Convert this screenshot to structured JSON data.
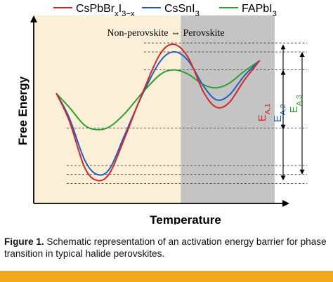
{
  "chart_data": {
    "type": "line",
    "xlabel": "Temperature",
    "ylabel": "Free Energy",
    "grid": false,
    "legend_position": "top",
    "legend": [
      {
        "name_parts": [
          {
            "t": "CsPbBr"
          },
          {
            "t": "x",
            "sub": true
          },
          {
            "t": "I"
          },
          {
            "t": "3−x",
            "sub": true
          }
        ],
        "color": "#d62728"
      },
      {
        "name_parts": [
          {
            "t": "CsSnI"
          },
          {
            "t": "3",
            "sub": true
          }
        ],
        "color": "#1f5fbf"
      },
      {
        "name_parts": [
          {
            "t": "FAPbI"
          },
          {
            "t": "3",
            "sub": true
          }
        ],
        "color": "#2ca02c"
      }
    ],
    "regions": [
      {
        "id": "non-perovskite",
        "x0": 0.0,
        "x1": 0.58,
        "color": "#fbefd7"
      },
      {
        "id": "perovskite",
        "x0": 0.58,
        "x1": 0.95,
        "color": "#c5c4c4"
      }
    ],
    "region_label": {
      "left": "Non-perovskite",
      "arrow": "⇔",
      "right": "Perovskite"
    },
    "xlim": [
      0,
      1
    ],
    "ylim": [
      0,
      1
    ],
    "series": [
      {
        "color": "#d62728",
        "points": [
          [
            0.09,
            0.64
          ],
          [
            0.14,
            0.46
          ],
          [
            0.2,
            0.15
          ],
          [
            0.25,
            0.06
          ],
          [
            0.3,
            0.11
          ],
          [
            0.36,
            0.35
          ],
          [
            0.43,
            0.65
          ],
          [
            0.5,
            0.91
          ],
          [
            0.555,
            0.97
          ],
          [
            0.61,
            0.88
          ],
          [
            0.67,
            0.65
          ],
          [
            0.72,
            0.55
          ],
          [
            0.77,
            0.58
          ],
          [
            0.83,
            0.73
          ],
          [
            0.89,
            0.86
          ]
        ]
      },
      {
        "color": "#1f5fbf",
        "points": [
          [
            0.09,
            0.64
          ],
          [
            0.14,
            0.48
          ],
          [
            0.2,
            0.2
          ],
          [
            0.25,
            0.1
          ],
          [
            0.3,
            0.14
          ],
          [
            0.36,
            0.37
          ],
          [
            0.43,
            0.64
          ],
          [
            0.5,
            0.86
          ],
          [
            0.555,
            0.92
          ],
          [
            0.61,
            0.86
          ],
          [
            0.67,
            0.69
          ],
          [
            0.72,
            0.6
          ],
          [
            0.77,
            0.63
          ],
          [
            0.83,
            0.76
          ],
          [
            0.89,
            0.86
          ]
        ]
      },
      {
        "color": "#2ca02c",
        "points": [
          [
            0.09,
            0.64
          ],
          [
            0.14,
            0.55
          ],
          [
            0.2,
            0.43
          ],
          [
            0.25,
            0.4
          ],
          [
            0.3,
            0.42
          ],
          [
            0.36,
            0.51
          ],
          [
            0.43,
            0.65
          ],
          [
            0.5,
            0.77
          ],
          [
            0.555,
            0.8
          ],
          [
            0.61,
            0.77
          ],
          [
            0.67,
            0.7
          ],
          [
            0.72,
            0.68
          ],
          [
            0.77,
            0.71
          ],
          [
            0.83,
            0.79
          ],
          [
            0.89,
            0.86
          ]
        ]
      }
    ],
    "reference_levels": [
      0.04,
      0.1,
      0.16,
      0.41,
      0.8,
      0.92,
      0.98
    ],
    "annotations": [
      {
        "label_parts": [
          {
            "t": "E"
          },
          {
            "t": "A,1",
            "sub": true
          }
        ],
        "color": "#d62728",
        "from": 0.06,
        "to": 0.97
      },
      {
        "label_parts": [
          {
            "t": "E"
          },
          {
            "t": "A,2",
            "sub": true
          }
        ],
        "color": "#1f5fbf",
        "from": 0.1,
        "to": 0.92
      },
      {
        "label_parts": [
          {
            "t": "E"
          },
          {
            "t": "A,3",
            "sub": true
          }
        ],
        "color": "#2ca02c",
        "from": 0.4,
        "to": 0.8
      }
    ]
  },
  "caption": {
    "label": "Figure 1.",
    "text": "  Schematic representation of an activation energy barrier for phase transition in typical halide perovskites."
  },
  "footer_color": "#f3a91b"
}
